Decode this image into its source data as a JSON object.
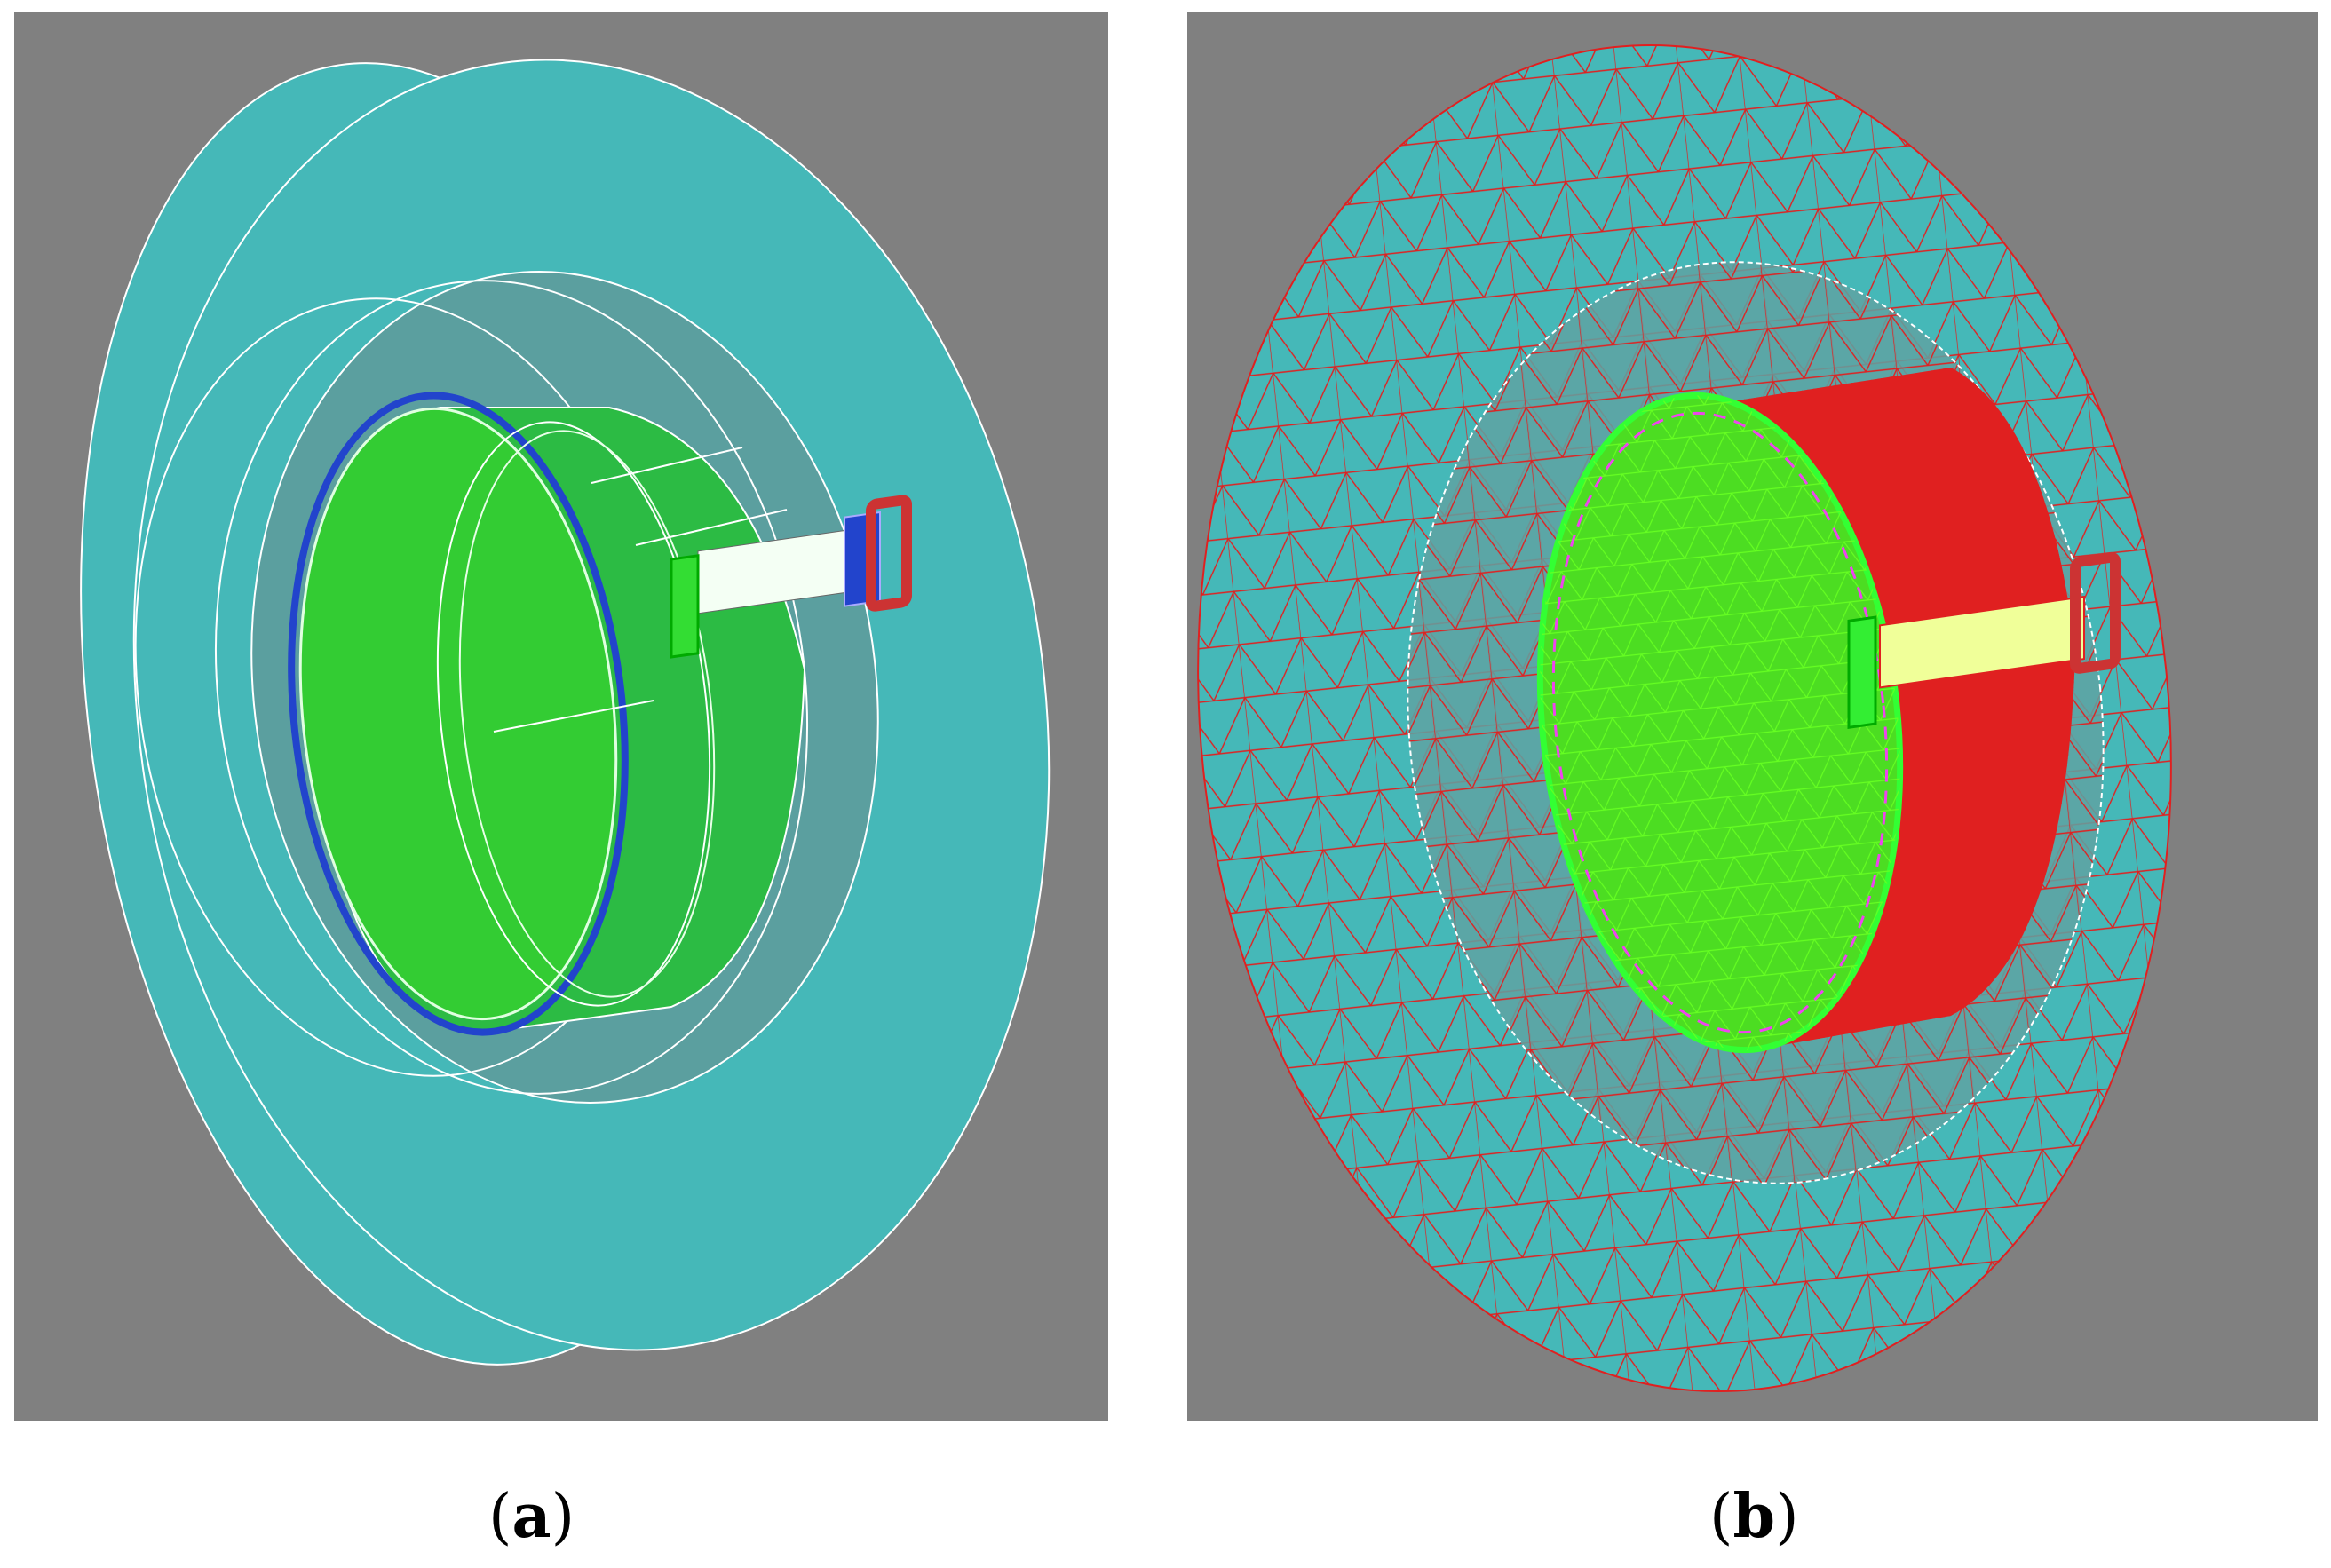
{
  "figure": {
    "panels": [
      {
        "id": "a",
        "label": "a",
        "caption_open": "(",
        "caption_close": ")",
        "render_style": "solid-wireframe"
      },
      {
        "id": "b",
        "label": "b",
        "caption_open": "(",
        "caption_close": ")",
        "render_style": "tetrahedral-mesh"
      }
    ]
  },
  "colors": {
    "background": "#808080",
    "outer_ring": "#45b8b8",
    "inner_region": "#5a9e9e",
    "cylinder_green": "#33cc33",
    "side_green": "#2cbb44",
    "coil_blue": "#2244cc",
    "red_core": "#cc3333",
    "mesh_red": "#e02020",
    "mesh_green": "#66ff22",
    "mesh_magenta": "#ee44ee",
    "edge_white": "#ffffff"
  }
}
